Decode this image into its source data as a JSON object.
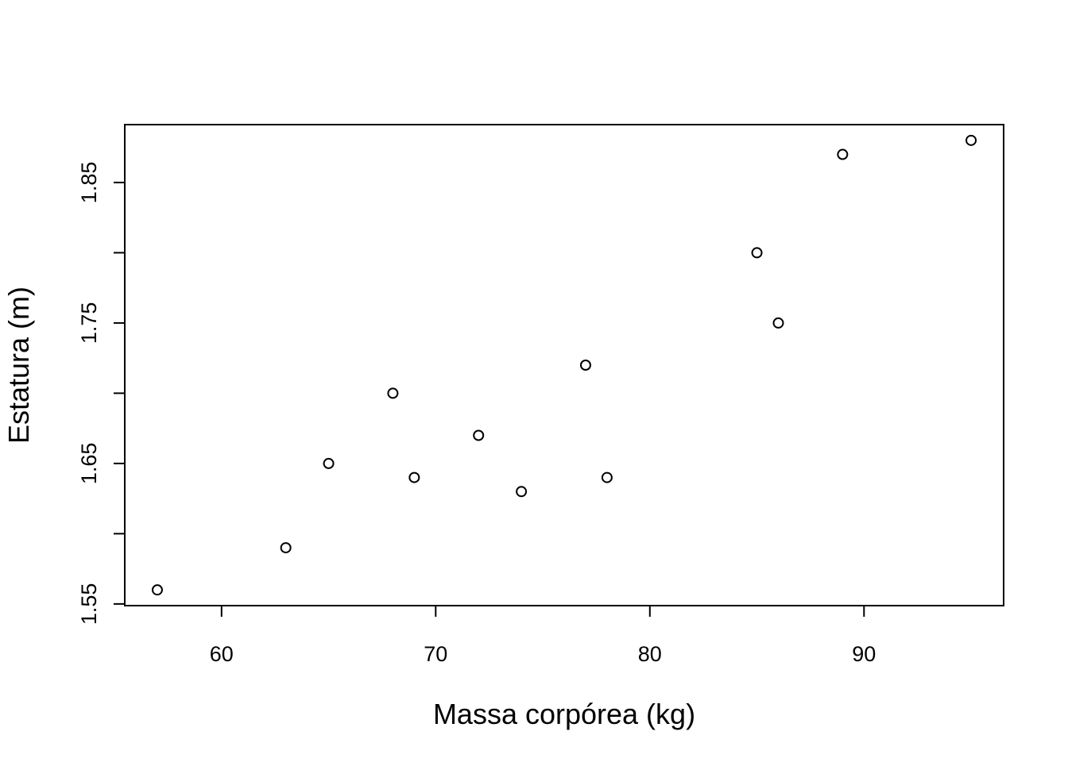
{
  "chart_data": {
    "type": "scatter",
    "title": "",
    "xlabel": "Massa corpórea (kg)",
    "ylabel": "Estatura (m)",
    "xlim": [
      55.48,
      96.52
    ],
    "ylim": [
      1.5488,
      1.8912
    ],
    "x_ticks": [
      60,
      70,
      80,
      90
    ],
    "x_tick_labels": [
      "60",
      "70",
      "80",
      "90"
    ],
    "y_ticks": [
      1.55,
      1.6,
      1.65,
      1.7,
      1.75,
      1.8,
      1.85
    ],
    "y_tick_labels": [
      "1.55",
      "",
      "1.65",
      "",
      "1.75",
      "",
      "1.85"
    ],
    "grid": false,
    "marker": "open-circle",
    "points": [
      {
        "x": 57,
        "y": 1.56
      },
      {
        "x": 63,
        "y": 1.59
      },
      {
        "x": 65,
        "y": 1.65
      },
      {
        "x": 68,
        "y": 1.7
      },
      {
        "x": 69,
        "y": 1.64
      },
      {
        "x": 72,
        "y": 1.67
      },
      {
        "x": 74,
        "y": 1.63
      },
      {
        "x": 77,
        "y": 1.72
      },
      {
        "x": 78,
        "y": 1.64
      },
      {
        "x": 85,
        "y": 1.8
      },
      {
        "x": 86,
        "y": 1.75
      },
      {
        "x": 89,
        "y": 1.87
      },
      {
        "x": 95,
        "y": 1.88
      }
    ]
  }
}
